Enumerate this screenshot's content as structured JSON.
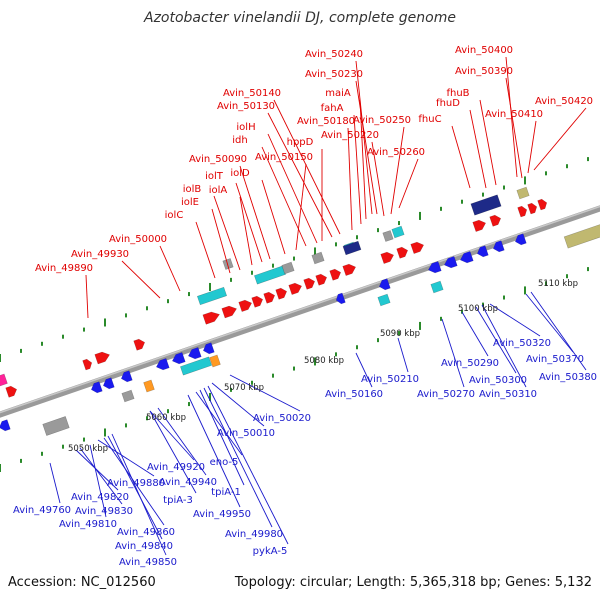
{
  "title": "Azotobacter vinelandii DJ, complete genome",
  "footer": {
    "accession": "Accession: NC_012560",
    "topology": "Topology: circular; Length: 5,365,318 bp; Genes: 5,132"
  },
  "colors": {
    "forward_label": "#e00000",
    "reverse_label": "#1a1acc",
    "backbone": "#8c8c8c",
    "tick": "#2a8a2a"
  },
  "axis_labels": [
    "5050 kbp",
    "5060 kbp",
    "5070 kbp",
    "5080 kbp",
    "5090 kbp",
    "5100 kbp",
    "5110 kbp"
  ],
  "forward_labels": [
    "Avin_50240",
    "Avin_50230",
    "maiA",
    "fahA",
    "Avin_50180",
    "Avin_50140",
    "Avin_50130",
    "iolH",
    "idh",
    "hppD",
    "Avin_50250",
    "Avin_50220",
    "Avin_50150",
    "iolD",
    "Avin_50260",
    "Avin_50090",
    "iolT",
    "iolA",
    "iolB",
    "iolE",
    "iolC",
    "Avin_50000",
    "Avin_49930",
    "Avin_49890",
    "Avin_50400",
    "Avin_50390",
    "fhuB",
    "fhuD",
    "Avin_50420",
    "Avin_50410",
    "fhuC"
  ],
  "reverse_labels": [
    "Avin_49760",
    "Avin_49820",
    "Avin_49810",
    "Avin_49830",
    "Avin_49880",
    "Avin_49860",
    "Avin_49840",
    "Avin_49850",
    "Avin_49920",
    "tpiA-3",
    "Avin_49940",
    "eno-5",
    "tpiA-1",
    "Avin_49950",
    "Avin_49980",
    "pykA-5",
    "Avin_50010",
    "Avin_50020",
    "Avin_50160",
    "Avin_50210",
    "Avin_50270",
    "Avin_50290",
    "Avin_50300",
    "Avin_50310",
    "Avin_50320",
    "Avin_50370",
    "Avin_50380"
  ]
}
